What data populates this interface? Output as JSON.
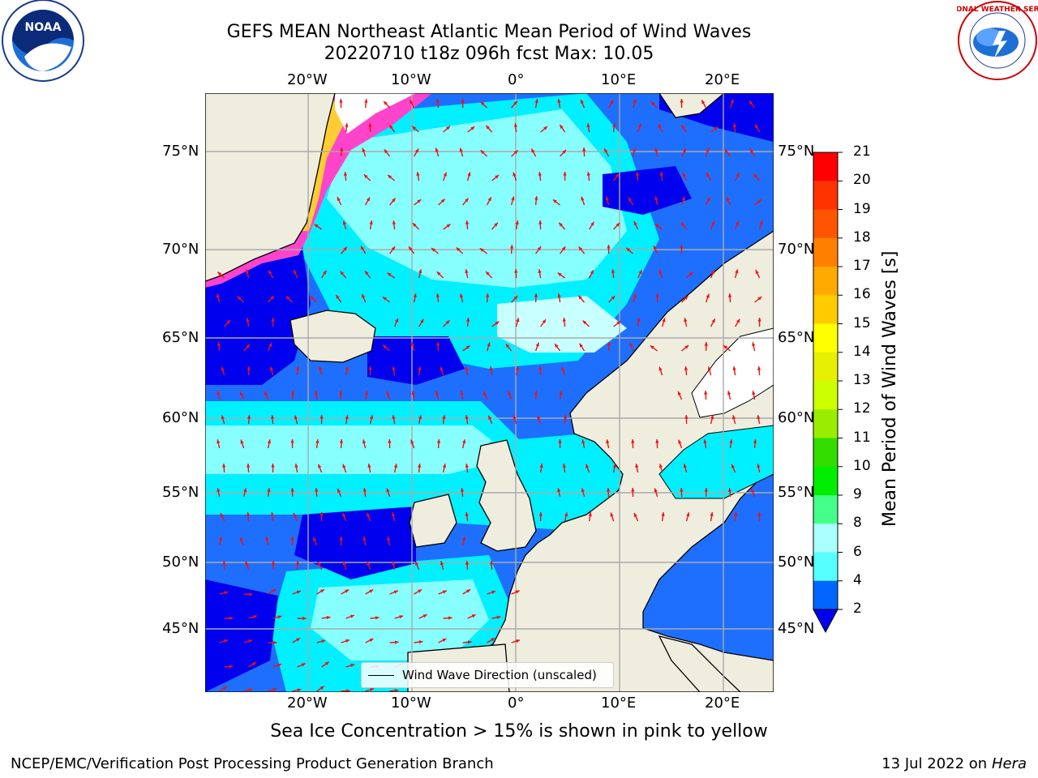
{
  "title_line1": "GEFS MEAN Northeast Atlantic Mean Period of Wind Waves",
  "title_line2": "20220710 t18z 096h fcst   Max: 10.05",
  "logos": {
    "left": "NOAA",
    "right": "NATIONAL WEATHER SERVICE"
  },
  "lon_ticks": [
    "20°W",
    "10°W",
    "0°",
    "10°E",
    "20°E"
  ],
  "lat_ticks": [
    "75°N",
    "70°N",
    "65°N",
    "60°N",
    "55°N",
    "50°N",
    "45°N"
  ],
  "legend_label": "Wind Wave Direction (unscaled)",
  "colorbar": {
    "label": "Mean Period of Wind Waves [s]",
    "ticks": [
      "21",
      "20",
      "19",
      "18",
      "17",
      "16",
      "15",
      "14",
      "13",
      "12",
      "11",
      "10",
      "9",
      "8",
      "6",
      "4",
      "2"
    ],
    "colors": [
      "#ff0000",
      "#ff3300",
      "#ff5500",
      "#ff8000",
      "#ffaa00",
      "#ffcc00",
      "#ffff00",
      "#e6f000",
      "#ccff00",
      "#99ee00",
      "#33dd00",
      "#00ee00",
      "#44ff88",
      "#aaffff",
      "#55ffff",
      "#00eeff",
      "#0066ff"
    ]
  },
  "ice_note": "Sea Ice Concentration > 15% is shown in pink to yellow",
  "footer_left": "NCEP/EMC/Verification Post Processing Product Generation Branch",
  "footer_right_text": "13 Jul 2022 on ",
  "footer_right_host": "Hera",
  "palette": {
    "land": "#efedde",
    "deep_blue": "#0000ee",
    "mid_blue": "#1f6fff",
    "cyan": "#00f0ff",
    "light_cyan": "#88ffff",
    "pale": "#c8ffff",
    "ice_pink": "#ff44cc",
    "ice_yellow": "#ffcc33",
    "arrow": "#ee1111"
  }
}
